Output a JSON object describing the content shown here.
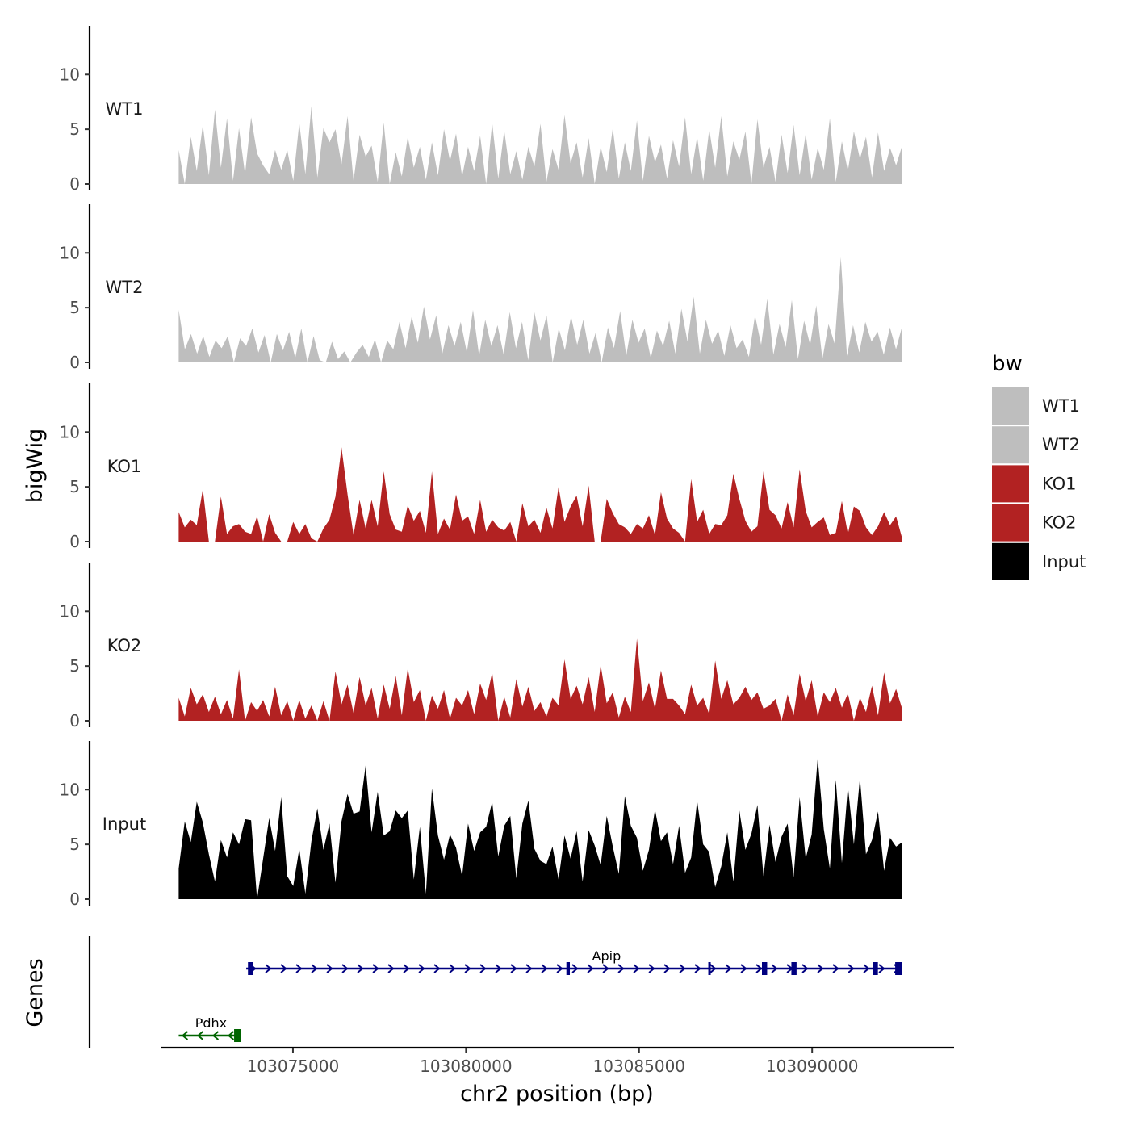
{
  "chart_data": {
    "type": "area",
    "x_axis": {
      "label": "chr2 position (bp)",
      "range": [
        103071200,
        103094100
      ],
      "ticks": [
        103075000,
        103080000,
        103085000,
        103090000
      ],
      "tick_labels": [
        "103075000",
        "103080000",
        "103085000",
        "103090000"
      ]
    },
    "y_axis": {
      "label": "bigWig",
      "range": [
        0,
        14
      ],
      "ticks": [
        0,
        5,
        10
      ],
      "tick_labels": [
        "0",
        "5",
        "10"
      ]
    },
    "genes_label": "Genes",
    "data_range": [
      103071700,
      103092600
    ],
    "tracks": [
      {
        "name": "WT1",
        "label": "WT1",
        "color": "#bebebe",
        "values": [
          3.1,
          0.0,
          4.3,
          1.2,
          5.4,
          0.8,
          6.8,
          1.5,
          6.0,
          0.3,
          5.1,
          0.9,
          6.1,
          2.8,
          1.7,
          0.9,
          3.1,
          1.3,
          3.1,
          0.3,
          5.6,
          0.9,
          7.1,
          0.6,
          5.1,
          3.8,
          5.0,
          1.8,
          6.2,
          0.3,
          4.5,
          2.5,
          3.5,
          0.2,
          5.6,
          0.0,
          2.9,
          0.7,
          4.3,
          1.5,
          3.4,
          0.4,
          3.8,
          0.8,
          5.0,
          2.1,
          4.6,
          0.7,
          3.4,
          1.2,
          4.4,
          0.0,
          5.6,
          0.5,
          4.9,
          0.9,
          3.0,
          0.4,
          3.4,
          1.6,
          5.5,
          0.2,
          3.2,
          1.3,
          6.3,
          1.9,
          3.8,
          0.6,
          4.2,
          0.0,
          3.4,
          1.1,
          5.1,
          0.5,
          3.8,
          1.2,
          5.8,
          0.3,
          4.4,
          2.0,
          3.6,
          0.5,
          4.0,
          1.6,
          6.1,
          0.9,
          4.3,
          0.3,
          5.0,
          1.5,
          6.2,
          0.7,
          3.9,
          2.2,
          4.8,
          0.0,
          5.9,
          1.5,
          3.4,
          0.2,
          4.5,
          1.0,
          5.4,
          0.8,
          4.6,
          0.4,
          3.3,
          1.3,
          6.0,
          0.2,
          3.9,
          1.2,
          4.8,
          2.3,
          4.3,
          0.6,
          4.7,
          1.2,
          3.3,
          1.7,
          3.5
        ]
      },
      {
        "name": "WT2",
        "label": "WT2",
        "color": "#bebebe",
        "values": [
          4.8,
          1.2,
          2.6,
          0.8,
          2.4,
          0.5,
          2.0,
          1.3,
          2.4,
          0.0,
          2.2,
          1.5,
          3.1,
          0.9,
          2.5,
          0.0,
          2.6,
          1.1,
          2.8,
          0.4,
          3.1,
          0.0,
          2.4,
          0.2,
          0.0,
          1.9,
          0.3,
          1.0,
          0.0,
          0.9,
          1.6,
          0.5,
          2.1,
          0.0,
          2.0,
          1.2,
          3.7,
          1.3,
          4.2,
          1.8,
          5.1,
          2.1,
          4.3,
          0.8,
          3.4,
          1.5,
          3.7,
          0.9,
          4.8,
          0.6,
          3.9,
          1.5,
          3.4,
          0.7,
          4.6,
          1.3,
          3.7,
          0.2,
          4.6,
          2.0,
          4.3,
          0.0,
          3.1,
          1.1,
          4.2,
          1.6,
          3.9,
          0.8,
          2.7,
          0.0,
          3.2,
          1.3,
          4.7,
          0.6,
          3.9,
          1.8,
          3.1,
          0.4,
          2.9,
          1.5,
          3.8,
          0.8,
          4.9,
          1.9,
          6.0,
          0.8,
          3.9,
          1.7,
          2.9,
          0.6,
          3.4,
          1.3,
          2.1,
          0.5,
          4.3,
          1.6,
          5.8,
          0.7,
          3.5,
          1.4,
          5.7,
          0.3,
          3.8,
          1.6,
          5.2,
          0.3,
          3.5,
          1.7,
          9.6,
          0.6,
          3.4,
          0.9,
          3.7,
          1.9,
          2.8,
          0.7,
          3.2,
          1.2,
          3.3
        ]
      },
      {
        "name": "KO1",
        "label": "KO1",
        "color": "#b22222",
        "values": [
          2.7,
          1.3,
          2.0,
          1.5,
          4.8,
          0.0,
          0.0,
          4.1,
          0.7,
          1.4,
          1.6,
          0.9,
          0.7,
          2.3,
          0.0,
          2.5,
          0.8,
          0.0,
          0.0,
          1.8,
          0.7,
          1.6,
          0.3,
          0.0,
          1.2,
          2.0,
          4.1,
          8.6,
          4.3,
          0.6,
          3.8,
          1.2,
          3.8,
          1.4,
          6.4,
          2.5,
          1.1,
          0.9,
          3.3,
          1.9,
          2.8,
          0.8,
          6.4,
          0.7,
          2.1,
          1.1,
          4.3,
          1.9,
          2.3,
          0.7,
          3.8,
          0.9,
          2.0,
          1.3,
          1.0,
          1.8,
          0.0,
          3.5,
          1.4,
          2.0,
          0.8,
          3.1,
          1.2,
          5.0,
          1.8,
          3.2,
          4.2,
          1.4,
          5.1,
          0.0,
          0.0,
          3.9,
          2.6,
          1.6,
          1.3,
          0.7,
          1.6,
          1.2,
          2.4,
          0.6,
          4.5,
          2.1,
          1.2,
          0.8,
          0.0,
          5.7,
          1.8,
          2.9,
          0.7,
          1.6,
          1.5,
          2.4,
          6.2,
          3.9,
          1.9,
          0.9,
          1.4,
          6.4,
          2.9,
          2.4,
          1.2,
          3.6,
          1.3,
          6.6,
          2.8,
          1.3,
          1.8,
          2.2,
          0.6,
          0.8,
          3.7,
          0.7,
          3.2,
          2.8,
          1.3,
          0.6,
          1.4,
          2.7,
          1.5,
          2.3,
          0.3
        ]
      },
      {
        "name": "KO2",
        "label": "KO2",
        "color": "#b22222",
        "values": [
          2.1,
          0.4,
          3.0,
          1.5,
          2.4,
          0.8,
          2.2,
          0.6,
          1.9,
          0.2,
          4.7,
          0.0,
          1.7,
          0.9,
          1.9,
          0.4,
          3.1,
          0.5,
          1.8,
          0.0,
          1.9,
          0.2,
          1.4,
          0.0,
          1.8,
          0.0,
          4.5,
          1.5,
          3.3,
          0.7,
          4.0,
          1.4,
          3.0,
          0.2,
          3.3,
          1.1,
          4.1,
          0.5,
          4.8,
          1.7,
          2.8,
          0.0,
          2.3,
          1.1,
          2.8,
          0.2,
          2.1,
          1.4,
          2.8,
          0.6,
          3.4,
          1.9,
          4.4,
          0.0,
          2.2,
          0.3,
          3.8,
          1.3,
          3.1,
          0.9,
          1.7,
          0.4,
          2.1,
          1.4,
          5.6,
          2.0,
          3.2,
          1.5,
          4.0,
          0.8,
          5.1,
          1.6,
          2.6,
          0.3,
          2.2,
          0.8,
          7.5,
          1.8,
          3.5,
          1.1,
          4.6,
          2.0,
          2.0,
          1.4,
          0.6,
          3.3,
          1.4,
          2.1,
          0.6,
          5.5,
          2.0,
          3.7,
          1.5,
          2.1,
          3.1,
          1.9,
          2.6,
          1.1,
          1.4,
          2.0,
          0.0,
          2.4,
          0.5,
          4.3,
          1.8,
          3.7,
          0.4,
          2.6,
          1.7,
          3.0,
          1.2,
          2.5,
          0.0,
          2.1,
          0.8,
          3.2,
          0.5,
          4.4,
          1.6,
          2.9,
          1.1
        ]
      },
      {
        "name": "Input",
        "label": "Input",
        "color": "#000000",
        "values": [
          2.8,
          7.1,
          5.2,
          8.9,
          7.0,
          4.1,
          1.6,
          5.4,
          3.8,
          6.1,
          5.0,
          7.3,
          7.2,
          0.0,
          3.7,
          7.4,
          4.4,
          9.3,
          2.1,
          1.2,
          4.6,
          0.5,
          5.3,
          8.3,
          4.5,
          6.9,
          1.5,
          7.1,
          9.6,
          7.8,
          8.0,
          12.2,
          6.1,
          9.8,
          5.8,
          6.2,
          8.1,
          7.4,
          8.1,
          1.8,
          6.6,
          0.5,
          10.1,
          5.8,
          3.6,
          5.9,
          4.7,
          2.1,
          6.9,
          4.4,
          6.1,
          6.6,
          8.9,
          3.9,
          6.7,
          7.6,
          1.9,
          6.9,
          9.0,
          4.6,
          3.5,
          3.2,
          4.8,
          1.8,
          5.8,
          3.7,
          6.2,
          1.6,
          6.3,
          4.9,
          3.1,
          7.6,
          4.8,
          2.3,
          9.4,
          6.7,
          5.6,
          2.6,
          4.5,
          8.2,
          5.3,
          6.1,
          3.2,
          6.7,
          2.4,
          3.8,
          9.0,
          5.0,
          4.3,
          1.1,
          3.0,
          6.1,
          1.6,
          8.1,
          4.5,
          6.0,
          8.6,
          2.1,
          6.8,
          3.4,
          5.7,
          6.9,
          2.0,
          9.3,
          3.7,
          5.9,
          12.9,
          6.4,
          2.8,
          10.9,
          3.3,
          10.3,
          5.0,
          11.1,
          4.1,
          5.4,
          8.0,
          2.6,
          5.6,
          4.8,
          5.2
        ]
      }
    ],
    "genes": [
      {
        "name": "Apip",
        "strand": "+",
        "color": "#000080",
        "start": 103073650,
        "end": 103092600,
        "exons": [
          [
            103073700,
            103073850
          ],
          [
            103082900,
            103083000
          ],
          [
            103087000,
            103087050
          ],
          [
            103088550,
            103088700
          ],
          [
            103089400,
            103089550
          ],
          [
            103091750,
            103091900
          ],
          [
            103092400,
            103092600
          ]
        ]
      },
      {
        "name": "Pdhx",
        "strand": "-",
        "color": "#006400",
        "start": 103071700,
        "end": 103073500,
        "exons": [
          [
            103073300,
            103073500
          ]
        ]
      }
    ]
  },
  "legend": {
    "title": "bw",
    "items": [
      {
        "label": "WT1",
        "color": "#bebebe"
      },
      {
        "label": "WT2",
        "color": "#bebebe"
      },
      {
        "label": "KO1",
        "color": "#b22222"
      },
      {
        "label": "KO2",
        "color": "#b22222"
      },
      {
        "label": "Input",
        "color": "#000000"
      }
    ]
  }
}
